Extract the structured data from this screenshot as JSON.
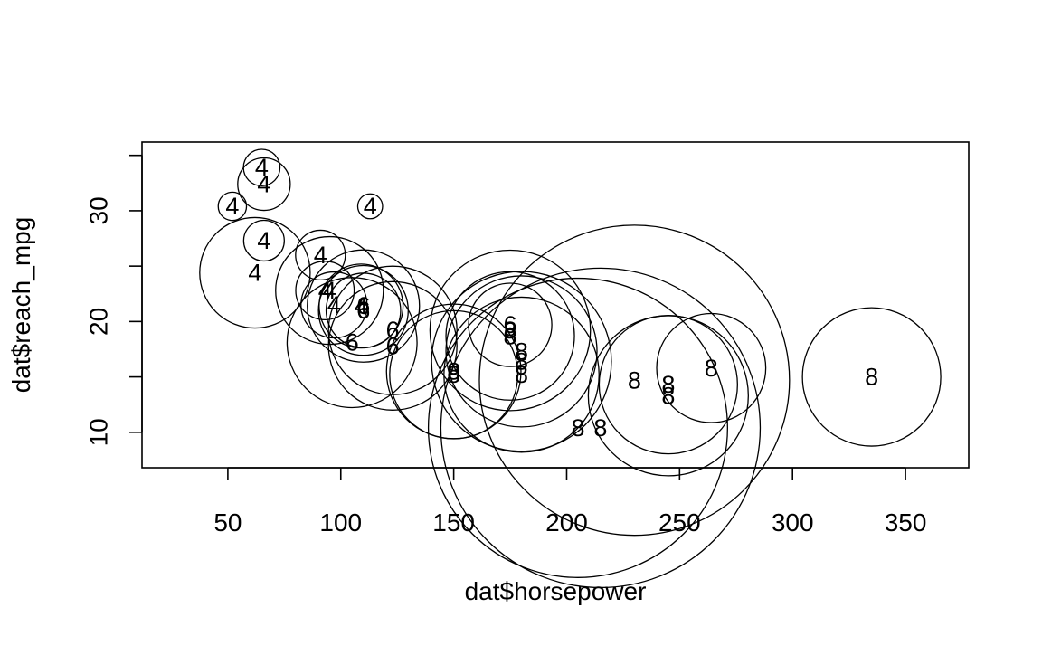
{
  "chart_data": {
    "type": "scatter",
    "title": "",
    "xlabel": "dat$horsepower",
    "ylabel": "dat$reach_mpg",
    "xlim": [
      12,
      378
    ],
    "ylim": [
      6.8,
      36.2
    ],
    "x_ticks": [
      50,
      100,
      150,
      200,
      250,
      300,
      350
    ],
    "y_ticks": [
      10,
      15,
      20,
      25,
      30,
      35
    ],
    "y_tick_labels_shown": [
      "10",
      "20",
      "30"
    ],
    "grid": false,
    "legend": "none",
    "point_style": "circle sized by weight, labelled with cylinder count",
    "points": [
      {
        "hp": 110,
        "mpg": 21.0,
        "label": "6",
        "size": 2.62
      },
      {
        "hp": 110,
        "mpg": 21.0,
        "label": "6",
        "size": 2.875
      },
      {
        "hp": 93,
        "mpg": 22.8,
        "label": "4",
        "size": 2.32
      },
      {
        "hp": 110,
        "mpg": 21.4,
        "label": "6",
        "size": 3.215
      },
      {
        "hp": 175,
        "mpg": 18.7,
        "label": "8",
        "size": 3.44
      },
      {
        "hp": 105,
        "mpg": 18.1,
        "label": "6",
        "size": 3.46
      },
      {
        "hp": 245,
        "mpg": 14.3,
        "label": "8",
        "size": 3.57
      },
      {
        "hp": 62,
        "mpg": 24.4,
        "label": "4",
        "size": 3.19
      },
      {
        "hp": 95,
        "mpg": 22.8,
        "label": "4",
        "size": 3.15
      },
      {
        "hp": 123,
        "mpg": 19.2,
        "label": "6",
        "size": 3.44
      },
      {
        "hp": 123,
        "mpg": 17.8,
        "label": "6",
        "size": 3.44
      },
      {
        "hp": 180,
        "mpg": 16.4,
        "label": "8",
        "size": 4.07
      },
      {
        "hp": 180,
        "mpg": 17.3,
        "label": "8",
        "size": 3.73
      },
      {
        "hp": 180,
        "mpg": 15.2,
        "label": "8",
        "size": 3.78
      },
      {
        "hp": 205,
        "mpg": 10.4,
        "label": "8",
        "size": 5.25
      },
      {
        "hp": 215,
        "mpg": 10.4,
        "label": "8",
        "size": 5.424
      },
      {
        "hp": 230,
        "mpg": 14.7,
        "label": "8",
        "size": 5.345
      },
      {
        "hp": 66,
        "mpg": 32.4,
        "label": "4",
        "size": 2.2
      },
      {
        "hp": 52,
        "mpg": 30.4,
        "label": "4",
        "size": 1.615
      },
      {
        "hp": 65,
        "mpg": 33.9,
        "label": "4",
        "size": 1.835
      },
      {
        "hp": 97,
        "mpg": 21.5,
        "label": "4",
        "size": 2.465
      },
      {
        "hp": 150,
        "mpg": 15.5,
        "label": "8",
        "size": 3.52
      },
      {
        "hp": 150,
        "mpg": 15.2,
        "label": "8",
        "size": 3.435
      },
      {
        "hp": 245,
        "mpg": 13.3,
        "label": "8",
        "size": 3.84
      },
      {
        "hp": 175,
        "mpg": 19.2,
        "label": "8",
        "size": 3.845
      },
      {
        "hp": 66,
        "mpg": 27.3,
        "label": "4",
        "size": 1.935
      },
      {
        "hp": 91,
        "mpg": 26.0,
        "label": "4",
        "size": 2.14
      },
      {
        "hp": 113,
        "mpg": 30.4,
        "label": "4",
        "size": 1.513
      },
      {
        "hp": 264,
        "mpg": 15.8,
        "label": "8",
        "size": 3.17
      },
      {
        "hp": 175,
        "mpg": 19.7,
        "label": "6",
        "size": 2.77
      },
      {
        "hp": 335,
        "mpg": 15.0,
        "label": "8",
        "size": 3.57
      },
      {
        "hp": 109,
        "mpg": 21.4,
        "label": "4",
        "size": 2.78
      }
    ]
  }
}
